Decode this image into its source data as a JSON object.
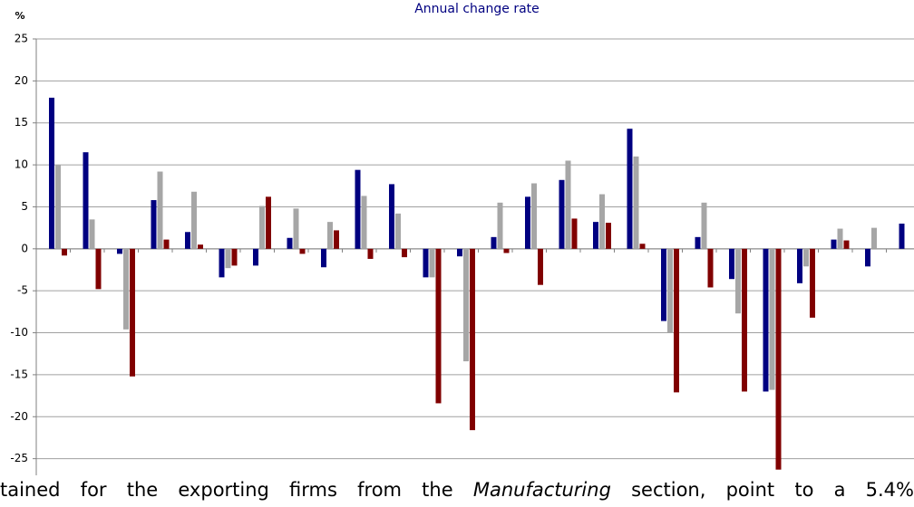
{
  "chart_data": {
    "type": "bar",
    "title": "Annual change rate",
    "y_label": "%",
    "categories": [
      null,
      null,
      null,
      null,
      null,
      null,
      null,
      null,
      null,
      null,
      null,
      null,
      null,
      null,
      null,
      null,
      null,
      null,
      null,
      null,
      null,
      null,
      null,
      null,
      null,
      null
    ],
    "series": [
      {
        "color": "#000080",
        "values": [
          18,
          11.5,
          -0.6,
          5.8,
          2,
          -3.4,
          -2,
          1.3,
          -2.2,
          9.4,
          7.7,
          -3.4,
          -0.9,
          1.4,
          6.2,
          8.2,
          3.2,
          14.3,
          -8.6,
          1.4,
          -3.6,
          -17,
          -4.1,
          1.1,
          -2.1,
          3
        ]
      },
      {
        "color": "#a6a6a6",
        "values": [
          10,
          3.5,
          -9.6,
          9.2,
          6.8,
          -2.3,
          5.1,
          4.8,
          3.2,
          6.3,
          4.2,
          -3.4,
          -13.4,
          5.5,
          7.8,
          10.5,
          6.5,
          11,
          -10,
          5.5,
          -7.7,
          -16.8,
          -2.1,
          2.4,
          2.5,
          null
        ]
      },
      {
        "color": "#800000",
        "values": [
          -0.8,
          -4.8,
          -15.2,
          1.1,
          0.5,
          -2,
          6.2,
          -0.6,
          2.2,
          -1.2,
          -1,
          -18.4,
          -21.6,
          -0.5,
          -4.3,
          3.6,
          3.1,
          0.6,
          -17.1,
          -4.6,
          -17,
          -26.3,
          -8.2,
          1,
          null,
          null
        ]
      }
    ],
    "ylim": [
      -30,
      25
    ],
    "yticks": [
      25,
      20,
      15,
      10,
      5,
      0,
      -5,
      -10,
      -15,
      -20,
      -25,
      -30
    ],
    "grid": true
  },
  "overlay_text": {
    "before": "tained for the exporting firms from the ",
    "italic": "Manufacturing",
    "after": " section, point to a 5.4%"
  }
}
